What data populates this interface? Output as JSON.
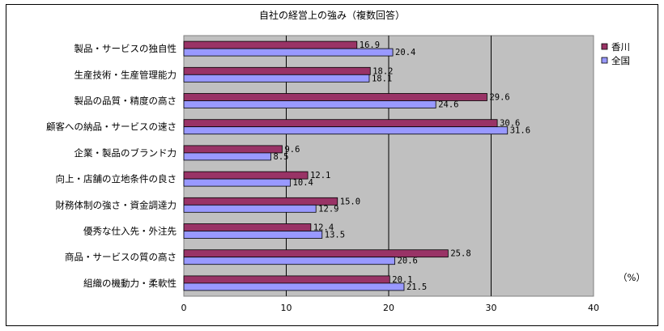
{
  "chart_data": {
    "type": "bar",
    "orientation": "horizontal",
    "title": "自社の経営上の強み（複数回答）",
    "unit": "（%）",
    "categories": [
      "製品・サービスの独自性",
      "生産技術・生産管理能力",
      "製品の品質・精度の高さ",
      "顧客への納品・サービスの速さ",
      "企業・製品のブランド力",
      "向上・店舗の立地条件の良さ",
      "財務体制の強さ・資金調達力",
      "優秀な仕入先・外注先",
      "商品・サービスの質の高さ",
      "組織の機動力・柔軟性"
    ],
    "series": [
      {
        "name": "香川",
        "color": "#993366",
        "values": [
          16.9,
          18.2,
          29.6,
          30.6,
          9.6,
          12.1,
          15.0,
          12.4,
          25.8,
          20.1
        ],
        "labels": [
          "16.9",
          "18.2",
          "29.6",
          "30.6",
          "9.6",
          "12.1",
          "15.0",
          "12.4",
          "25.8",
          "20.1"
        ]
      },
      {
        "name": "全国",
        "color": "#9999ff",
        "values": [
          20.4,
          18.1,
          24.6,
          31.6,
          8.5,
          10.4,
          12.9,
          13.5,
          20.6,
          21.5
        ],
        "labels": [
          "20.4",
          "18.1",
          "24.6",
          "31.6",
          "8.5",
          "10.4",
          "12.9",
          "13.5",
          "20.6",
          "21.5"
        ]
      }
    ],
    "xlim": [
      0,
      40
    ],
    "xticks": [
      0,
      10,
      20,
      30,
      40
    ],
    "xtick_labels": [
      "0",
      "10",
      "20",
      "30",
      "40"
    ],
    "plot_background": "#c0c0c0",
    "grid": true,
    "legend_position": "right"
  }
}
